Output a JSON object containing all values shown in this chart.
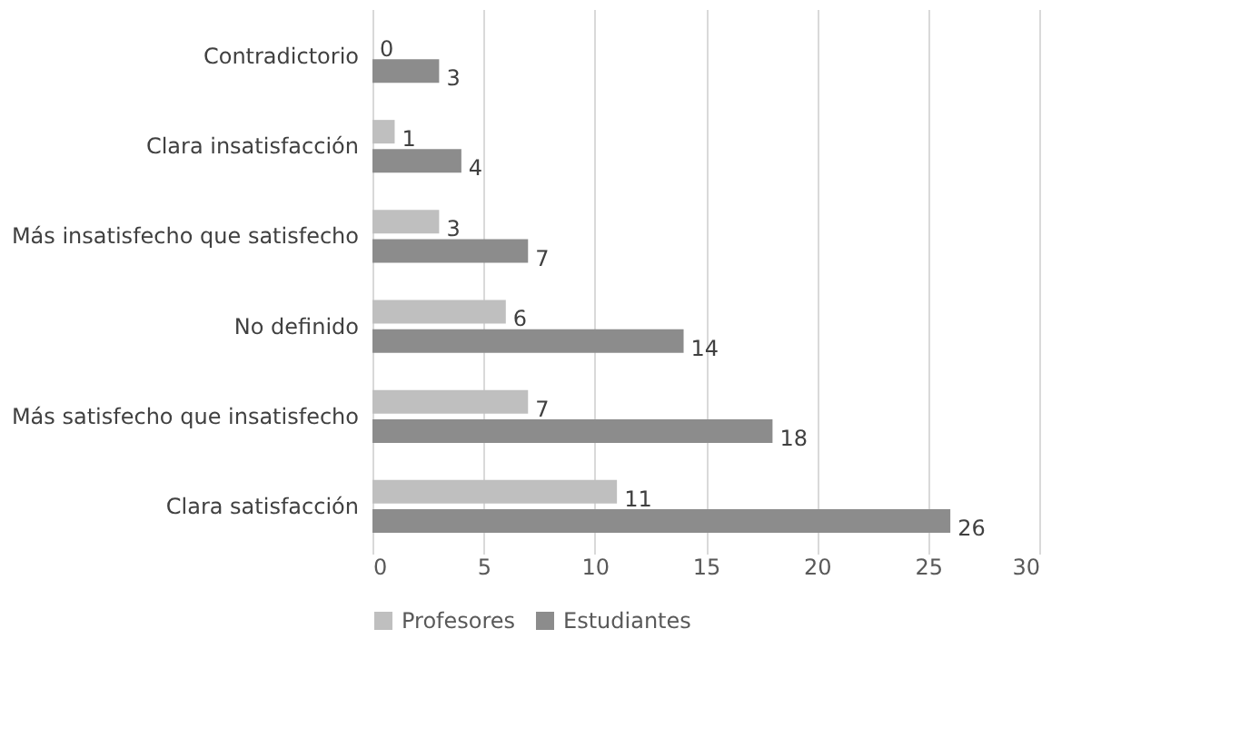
{
  "chart_data": {
    "type": "bar",
    "orientation": "horizontal",
    "categories": [
      "Contradictorio",
      "Clara insatisfacción",
      "Más insatisfecho que satisfecho",
      "No definido",
      "Más satisfecho que insatisfecho",
      "Clara satisfacción"
    ],
    "series": [
      {
        "name": "Profesores",
        "color": "#bfbfbf",
        "values": [
          0,
          1,
          3,
          6,
          7,
          11
        ]
      },
      {
        "name": "Estudiantes",
        "color": "#8c8c8c",
        "values": [
          3,
          4,
          7,
          14,
          18,
          26
        ]
      }
    ],
    "xlim": [
      0,
      30
    ],
    "xticks": [
      0,
      5,
      10,
      15,
      20,
      25,
      30
    ],
    "grid": "x",
    "legend": "bottom",
    "data_labels": true
  }
}
